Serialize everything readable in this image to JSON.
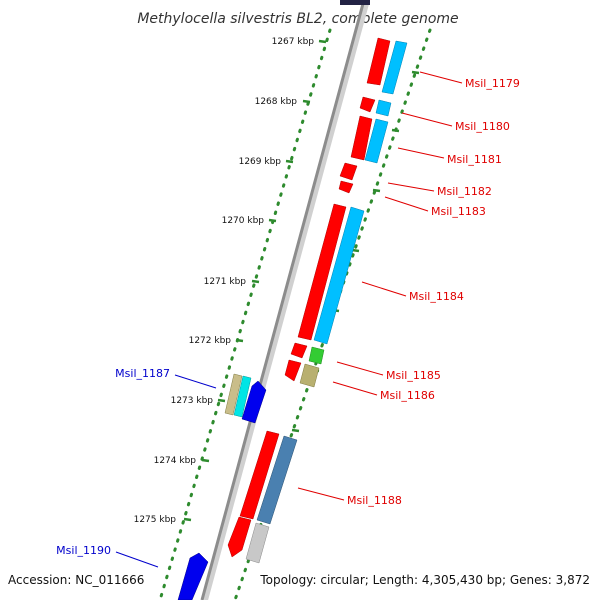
{
  "title": "Methylocella silvestris BL2, complete genome",
  "footer": {
    "accession": "Accession: NC_011666",
    "summary": "Topology: circular; Length: 4,305,430 bp; Genes: 3,872"
  },
  "colors": {
    "background": "#ffffff",
    "backbone": "#8c8c8c",
    "dotted_ruler": "#2e8b2e",
    "tick": "#2e8b2e",
    "gene_red": "#ff0000",
    "gene_cyan": "#00bfff",
    "label_right": "#e00000",
    "label_left": "#0000cc"
  },
  "ticks": [
    {
      "label": "1267 kbp"
    },
    {
      "label": "1268 kbp"
    },
    {
      "label": "1269 kbp"
    },
    {
      "label": "1270 kbp"
    },
    {
      "label": "1271 kbp"
    },
    {
      "label": "1272 kbp"
    },
    {
      "label": "1273 kbp"
    },
    {
      "label": "1274 kbp"
    },
    {
      "label": "1275 kbp"
    }
  ],
  "gene_labels": [
    {
      "text": "Msil_1179",
      "side": "right"
    },
    {
      "text": "Msil_1180",
      "side": "right"
    },
    {
      "text": "Msil_1181",
      "side": "right"
    },
    {
      "text": "Msil_1182",
      "side": "right"
    },
    {
      "text": "Msil_1183",
      "side": "right"
    },
    {
      "text": "Msil_1184",
      "side": "right"
    },
    {
      "text": "Msil_1185",
      "side": "right"
    },
    {
      "text": "Msil_1186",
      "side": "right"
    },
    {
      "text": "Msil_1187",
      "side": "left"
    },
    {
      "text": "Msil_1188",
      "side": "right"
    },
    {
      "text": "Msil_1190",
      "side": "left"
    }
  ]
}
